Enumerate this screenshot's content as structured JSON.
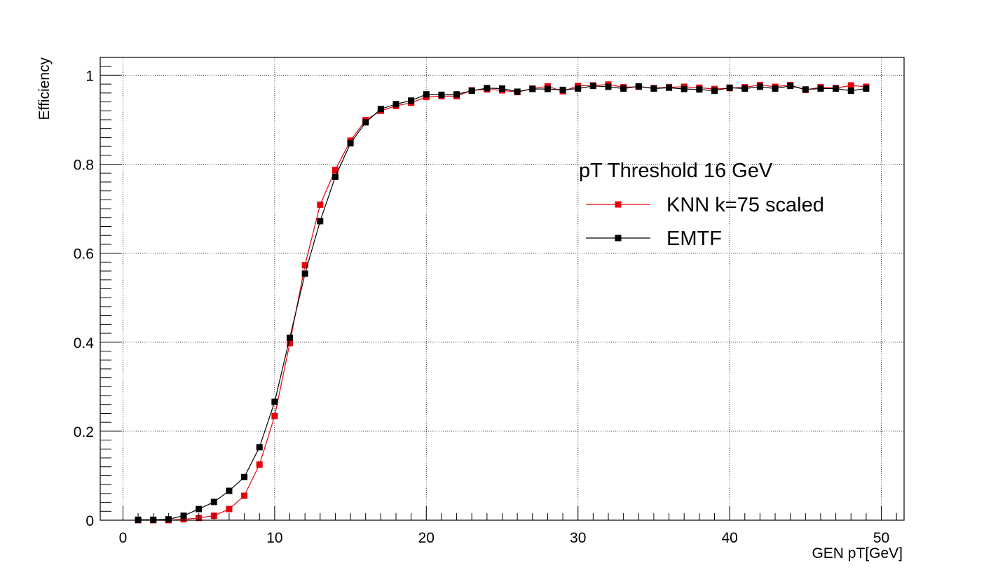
{
  "chart_data": {
    "type": "line",
    "title": "",
    "xlabel": "GEN pT[GeV]",
    "ylabel": "Efficiency",
    "xlim": [
      -1.5,
      51.5
    ],
    "ylim": [
      0,
      1.04
    ],
    "x_ticks": [
      0,
      10,
      20,
      30,
      40,
      50
    ],
    "y_ticks": [
      0,
      0.2,
      0.4,
      0.6,
      0.8,
      1
    ],
    "x_tick_labels": [
      "0",
      "10",
      "20",
      "30",
      "40",
      "50"
    ],
    "y_tick_labels": [
      "0",
      "0.2",
      "0.4",
      "0.6",
      "0.8",
      "1"
    ],
    "grid": true,
    "legend": {
      "header": "pT Threshold 16 GeV",
      "placement": "center-right"
    },
    "x": [
      1,
      2,
      3,
      4,
      5,
      6,
      7,
      8,
      9,
      10,
      11,
      12,
      13,
      14,
      15,
      16,
      17,
      18,
      19,
      20,
      21,
      22,
      23,
      24,
      25,
      26,
      27,
      28,
      29,
      30,
      31,
      32,
      33,
      34,
      35,
      36,
      37,
      38,
      39,
      40,
      41,
      42,
      43,
      44,
      45,
      46,
      47,
      48,
      49
    ],
    "series": [
      {
        "name": "KNN k=75 scaled",
        "color": "#e8000b",
        "marker": "square",
        "values": [
          0.0,
          0.0,
          0.0,
          0.002,
          0.005,
          0.01,
          0.025,
          0.055,
          0.125,
          0.234,
          0.398,
          0.573,
          0.709,
          0.787,
          0.853,
          0.899,
          0.92,
          0.931,
          0.938,
          0.951,
          0.953,
          0.953,
          0.966,
          0.968,
          0.966,
          0.962,
          0.97,
          0.975,
          0.964,
          0.976,
          0.977,
          0.979,
          0.973,
          0.974,
          0.971,
          0.973,
          0.974,
          0.972,
          0.969,
          0.971,
          0.973,
          0.978,
          0.974,
          0.978,
          0.967,
          0.973,
          0.971,
          0.977,
          0.974
        ]
      },
      {
        "name": "EMTF",
        "color": "#000000",
        "marker": "square",
        "values": [
          0.001,
          0.001,
          0.002,
          0.01,
          0.025,
          0.041,
          0.066,
          0.097,
          0.164,
          0.266,
          0.41,
          0.554,
          0.672,
          0.772,
          0.847,
          0.894,
          0.924,
          0.935,
          0.943,
          0.957,
          0.956,
          0.957,
          0.965,
          0.971,
          0.97,
          0.963,
          0.969,
          0.969,
          0.967,
          0.97,
          0.976,
          0.974,
          0.97,
          0.975,
          0.97,
          0.972,
          0.969,
          0.968,
          0.965,
          0.972,
          0.97,
          0.974,
          0.97,
          0.976,
          0.968,
          0.97,
          0.97,
          0.965,
          0.97
        ]
      }
    ]
  }
}
